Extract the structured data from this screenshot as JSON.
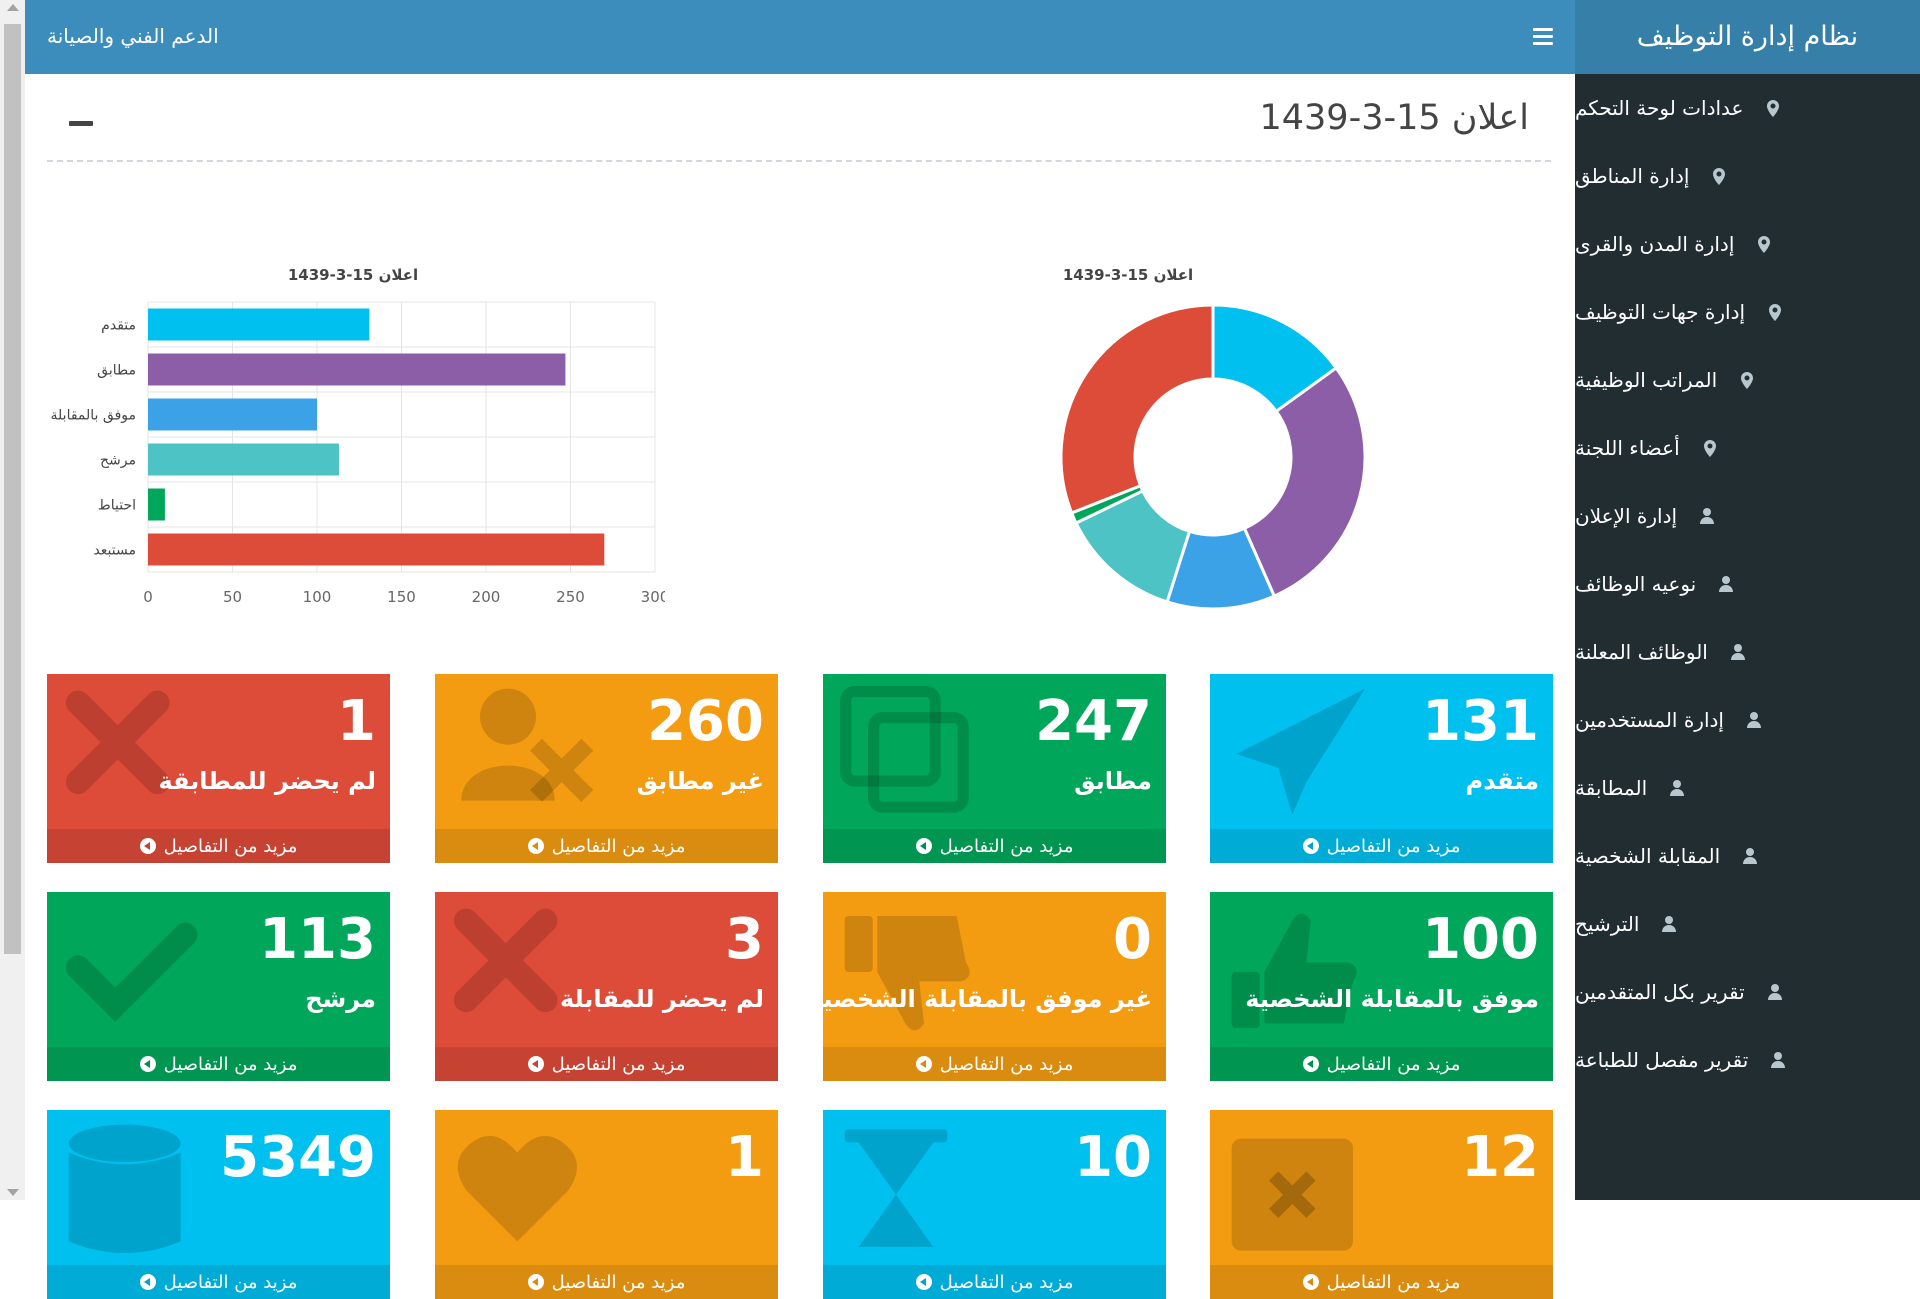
{
  "topbar": {
    "support_label": "الدعم الفني والصيانة"
  },
  "sidebar": {
    "brand": "نظام إدارة التوظيف",
    "items": [
      {
        "label": "عدادات لوحة التحكم",
        "icon": "map-marker-icon"
      },
      {
        "label": "إدارة المناطق",
        "icon": "map-marker-icon"
      },
      {
        "label": "إدارة المدن والقرى",
        "icon": "map-marker-icon"
      },
      {
        "label": "إدارة جهات التوظيف",
        "icon": "map-marker-icon"
      },
      {
        "label": "المراتب الوظيفية",
        "icon": "map-marker-icon"
      },
      {
        "label": "أعضاء اللجنة",
        "icon": "map-marker-icon"
      },
      {
        "label": "إدارة الإعلان",
        "icon": "user-icon"
      },
      {
        "label": "نوعيه الوظائف",
        "icon": "user-icon"
      },
      {
        "label": "الوظائف المعلنة",
        "icon": "user-icon"
      },
      {
        "label": "إدارة المستخدمين",
        "icon": "user-icon"
      },
      {
        "label": "المطابقة",
        "icon": "user-icon"
      },
      {
        "label": "المقابلة الشخصية",
        "icon": "user-icon"
      },
      {
        "label": "الترشيح",
        "icon": "user-icon"
      },
      {
        "label": "تقرير بكل المتقدمين",
        "icon": "user-icon"
      },
      {
        "label": "تقرير مفصل للطباعة",
        "icon": "user-icon"
      }
    ]
  },
  "page": {
    "title": "اعلان 15-3-1439"
  },
  "chart_data": [
    {
      "type": "bar",
      "orientation": "horizontal",
      "title": "اعلان 15-3-1439",
      "categories": [
        "متقدم",
        "مطابق",
        "موفق بالمقابلة",
        "مرشح",
        "احتياط",
        "مستبعد"
      ],
      "values": [
        131,
        247,
        100,
        113,
        10,
        270
      ],
      "colors": [
        "#00c0ef",
        "#8c5ea8",
        "#3ca2e8",
        "#4dc3c6",
        "#00a65a",
        "#dd4b39"
      ],
      "xlim": [
        0,
        300
      ],
      "xticks": [
        0,
        50,
        100,
        150,
        200,
        250,
        300
      ],
      "grid": true
    },
    {
      "type": "pie",
      "style": "donut",
      "title": "اعلان 15-3-1439",
      "values": [
        131,
        247,
        100,
        113,
        10,
        270
      ],
      "colors": [
        "#00c0ef",
        "#8c5ea8",
        "#3ca2e8",
        "#4dc3c6",
        "#00a65a",
        "#dd4b39"
      ]
    }
  ],
  "common": {
    "more_info": "مزيد من التفاصيل"
  },
  "boxes": [
    {
      "value": "131",
      "label": "متقدم",
      "color": "aqua",
      "icon": "paper-plane-icon"
    },
    {
      "value": "247",
      "label": "مطابق",
      "color": "green",
      "icon": "copy-icon"
    },
    {
      "value": "260",
      "label": "غير مطابق",
      "color": "orange",
      "icon": "user-times-icon"
    },
    {
      "value": "1",
      "label": "لم يحضر للمطابقة",
      "color": "red",
      "icon": "times-icon"
    },
    {
      "value": "100",
      "label": "موفق بالمقابلة الشخصية",
      "color": "green",
      "icon": "thumbs-up-icon"
    },
    {
      "value": "0",
      "label": "غير موفق بالمقابلة الشخصية",
      "color": "orange",
      "icon": "thumbs-down-icon"
    },
    {
      "value": "3",
      "label": "لم يحضر للمقابلة",
      "color": "red",
      "icon": "times-icon"
    },
    {
      "value": "113",
      "label": "مرشح",
      "color": "green",
      "icon": "check-icon"
    },
    {
      "value": "12",
      "label": "",
      "color": "orange",
      "icon": "calendar-times-icon"
    },
    {
      "value": "10",
      "label": "",
      "color": "aqua",
      "icon": "hourglass-icon"
    },
    {
      "value": "1",
      "label": "",
      "color": "orange",
      "icon": "heartbeat-icon"
    },
    {
      "value": "5349",
      "label": "",
      "color": "aqua",
      "icon": "database-icon"
    }
  ]
}
